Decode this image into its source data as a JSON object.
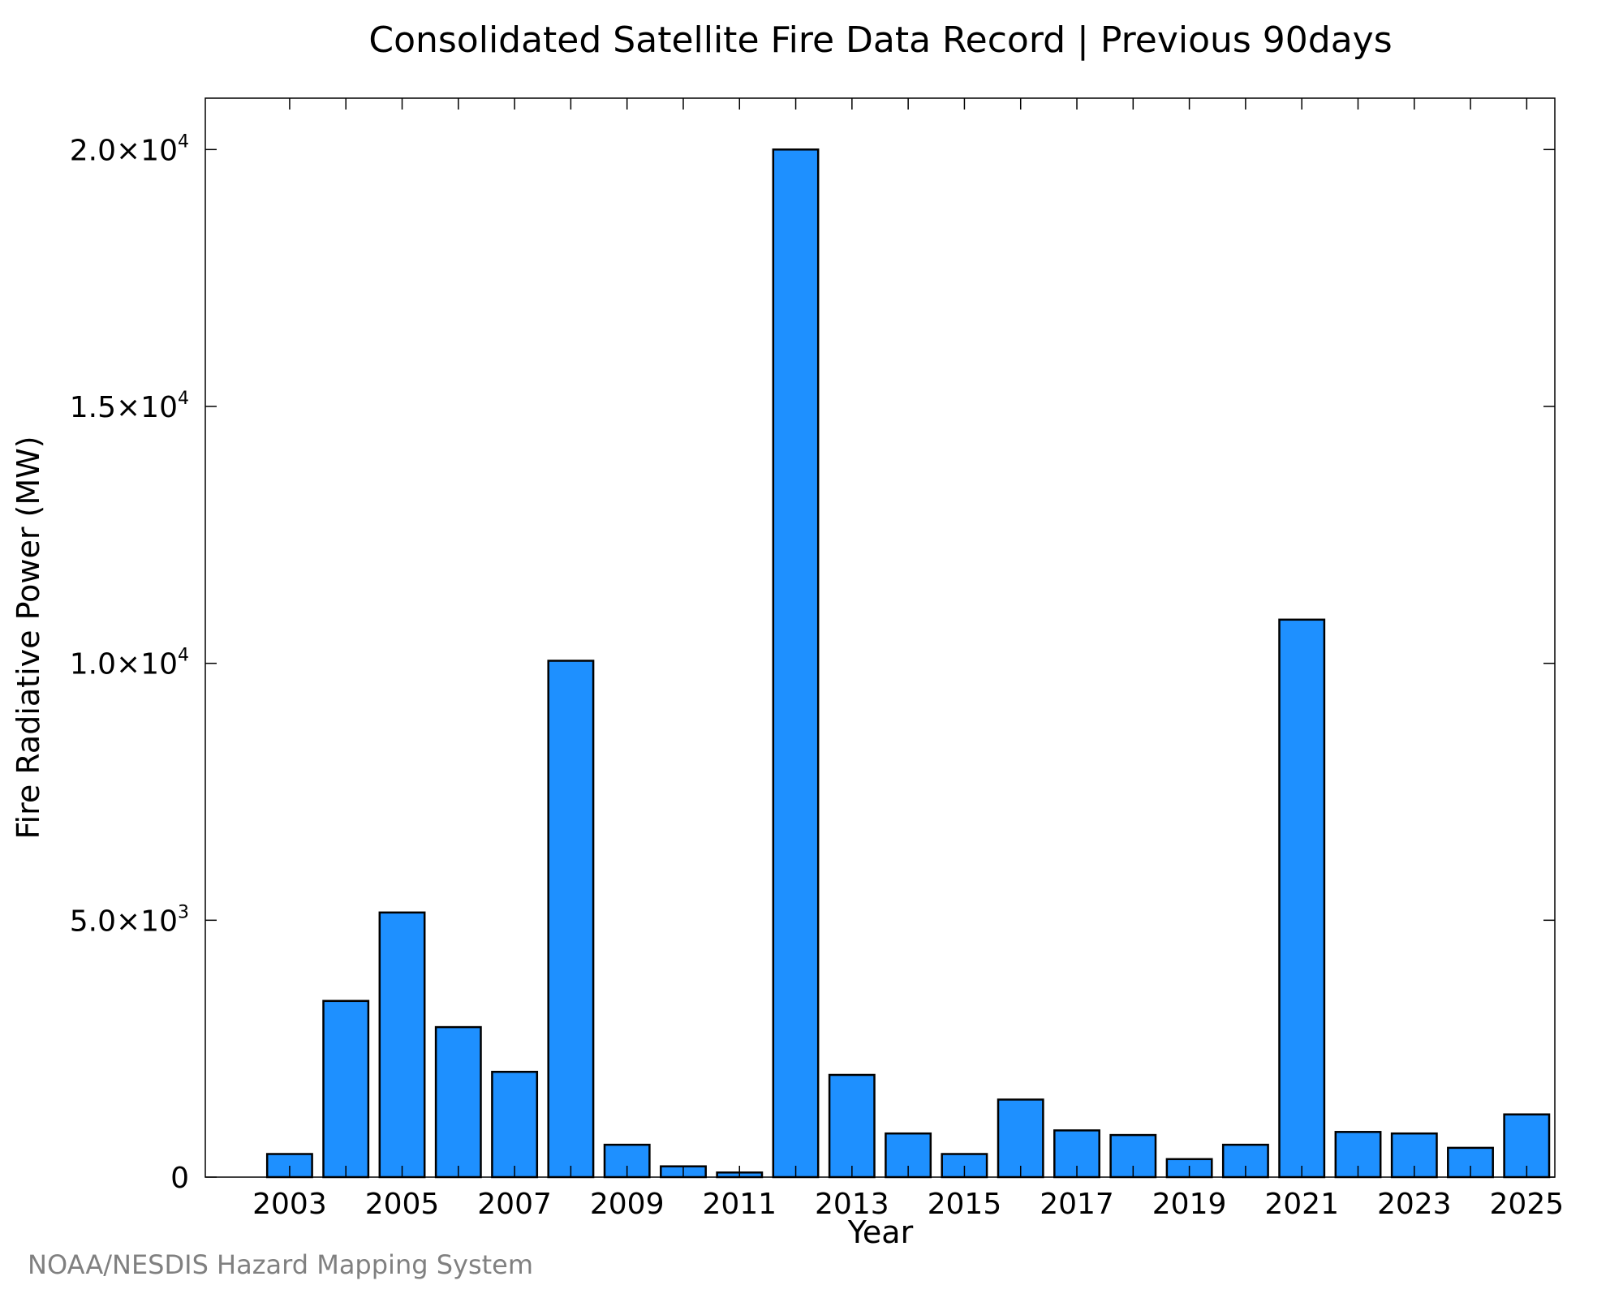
{
  "chart_data": {
    "type": "bar",
    "title": "Consolidated Satellite Fire Data Record | Previous 90days",
    "xlabel": "Year",
    "ylabel": "Fire Radiative Power (MW)",
    "categories": [
      "2003",
      "2004",
      "2005",
      "2006",
      "2007",
      "2008",
      "2009",
      "2010",
      "2011",
      "2012",
      "2013",
      "2014",
      "2015",
      "2016",
      "2017",
      "2018",
      "2019",
      "2020",
      "2021",
      "2022",
      "2023",
      "2024",
      "2025"
    ],
    "values": [
      450,
      3430,
      5150,
      2920,
      2050,
      10050,
      630,
      210,
      90,
      20000,
      1990,
      850,
      450,
      1510,
      910,
      820,
      350,
      630,
      10850,
      880,
      850,
      570,
      1220
    ],
    "x_tick_labels": [
      "2003",
      "2005",
      "2007",
      "2009",
      "2011",
      "2013",
      "2015",
      "2017",
      "2019",
      "2021",
      "2023",
      "2025"
    ],
    "y_ticks": [
      {
        "value": 0,
        "mantissa": "0",
        "exponent": ""
      },
      {
        "value": 5000,
        "mantissa": "5.0×10",
        "exponent": "3"
      },
      {
        "value": 10000,
        "mantissa": "1.0×10",
        "exponent": "4"
      },
      {
        "value": 15000,
        "mantissa": "1.5×10",
        "exponent": "4"
      },
      {
        "value": 20000,
        "mantissa": "2.0×10",
        "exponent": "4"
      }
    ],
    "ylim": [
      0,
      21000
    ],
    "xlim": [
      2001.5,
      2025.5
    ],
    "grid": false,
    "legend": "none",
    "bar_color": "#1E90FF",
    "edge_color": "#000000"
  },
  "footer": {
    "credit": "NOAA/NESDIS Hazard Mapping System"
  }
}
